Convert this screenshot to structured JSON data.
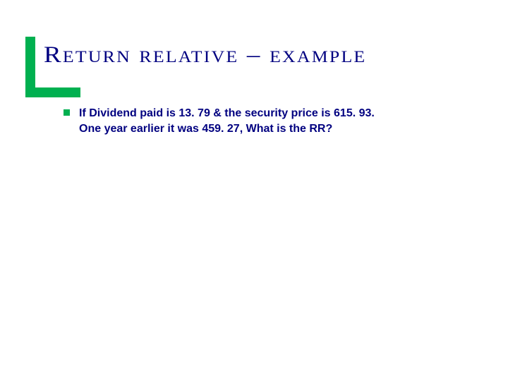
{
  "slide": {
    "title": "Return relative – example",
    "body_line1": "If Dividend paid is 13. 79 & the security price is 615. 93.",
    "body_line2": "One year earlier it was 459. 27,  What is the RR?",
    "accent_color": "#00b050",
    "title_color": "#000080",
    "title_fontsize": 33,
    "body_color": "#000080",
    "body_fontsize": 16,
    "background_color": "#ffffff"
  }
}
